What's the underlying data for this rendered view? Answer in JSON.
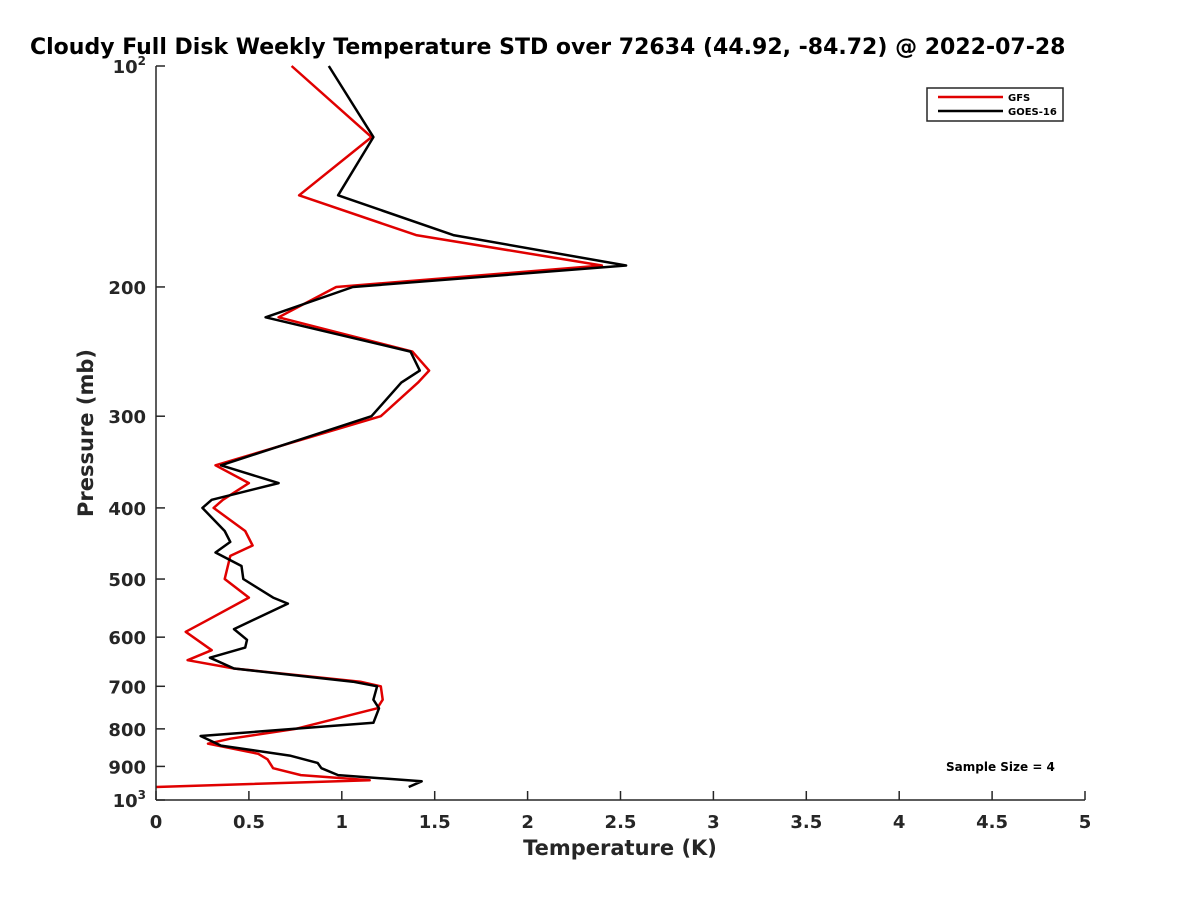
{
  "chart_data": {
    "type": "line",
    "title": "Cloudy Full Disk Weekly Temperature STD over 72634 (44.92, -84.72) @ 2022-07-28",
    "xlabel": "Temperature (K)",
    "ylabel": "Pressure (mb)",
    "xlim": [
      0,
      5
    ],
    "ylim": [
      100,
      1000
    ],
    "y_scale": "log",
    "y_reversed": true,
    "grid": false,
    "legend_position": "top-right",
    "x_ticks": [
      "0",
      "0.5",
      "1",
      "1.5",
      "2",
      "2.5",
      "3",
      "3.5",
      "4",
      "4.5",
      "5"
    ],
    "y_ticks": [
      {
        "value": 100,
        "base": "10",
        "exp": "2"
      },
      {
        "value": 200,
        "label": "200"
      },
      {
        "value": 300,
        "label": "300"
      },
      {
        "value": 400,
        "label": "400"
      },
      {
        "value": 500,
        "label": "500"
      },
      {
        "value": 600,
        "label": "600"
      },
      {
        "value": 700,
        "label": "700"
      },
      {
        "value": 800,
        "label": "800"
      },
      {
        "value": 900,
        "label": "900"
      },
      {
        "value": 1000,
        "base": "10",
        "exp": "3"
      }
    ],
    "annotation": "Sample Size = 4",
    "series": [
      {
        "name": "GFS",
        "color": "#e00000",
        "points": [
          [
            0.73,
            100
          ],
          [
            1.16,
            125
          ],
          [
            0.77,
            150
          ],
          [
            1.4,
            170
          ],
          [
            2.4,
            187
          ],
          [
            0.97,
            200
          ],
          [
            0.66,
            220
          ],
          [
            1.38,
            245
          ],
          [
            1.47,
            260
          ],
          [
            1.41,
            270
          ],
          [
            1.21,
            300
          ],
          [
            0.32,
            350
          ],
          [
            0.5,
            370
          ],
          [
            0.36,
            390
          ],
          [
            0.31,
            400
          ],
          [
            0.48,
            430
          ],
          [
            0.52,
            450
          ],
          [
            0.4,
            465
          ],
          [
            0.37,
            500
          ],
          [
            0.5,
            530
          ],
          [
            0.27,
            570
          ],
          [
            0.16,
            590
          ],
          [
            0.3,
            625
          ],
          [
            0.17,
            645
          ],
          [
            0.42,
            662
          ],
          [
            1.1,
            690
          ],
          [
            1.21,
            700
          ],
          [
            1.22,
            730
          ],
          [
            1.19,
            750
          ],
          [
            0.75,
            800
          ],
          [
            0.4,
            825
          ],
          [
            0.28,
            838
          ],
          [
            0.55,
            865
          ],
          [
            0.6,
            880
          ],
          [
            0.63,
            905
          ],
          [
            0.78,
            925
          ],
          [
            1.15,
            940
          ],
          [
            0.0,
            960
          ]
        ]
      },
      {
        "name": "GOES-16",
        "color": "#000000",
        "points": [
          [
            0.93,
            100
          ],
          [
            1.17,
            125
          ],
          [
            0.98,
            150
          ],
          [
            1.6,
            170
          ],
          [
            2.53,
            187
          ],
          [
            1.06,
            200
          ],
          [
            0.59,
            220
          ],
          [
            1.37,
            245
          ],
          [
            1.42,
            260
          ],
          [
            1.32,
            270
          ],
          [
            1.16,
            300
          ],
          [
            0.35,
            350
          ],
          [
            0.66,
            370
          ],
          [
            0.3,
            390
          ],
          [
            0.25,
            400
          ],
          [
            0.37,
            430
          ],
          [
            0.4,
            445
          ],
          [
            0.32,
            460
          ],
          [
            0.46,
            480
          ],
          [
            0.47,
            500
          ],
          [
            0.63,
            530
          ],
          [
            0.71,
            540
          ],
          [
            0.42,
            585
          ],
          [
            0.49,
            605
          ],
          [
            0.48,
            620
          ],
          [
            0.29,
            640
          ],
          [
            0.42,
            662
          ],
          [
            1.06,
            690
          ],
          [
            1.19,
            700
          ],
          [
            1.17,
            730
          ],
          [
            1.2,
            750
          ],
          [
            1.17,
            785
          ],
          [
            0.24,
            818
          ],
          [
            0.35,
            843
          ],
          [
            0.72,
            870
          ],
          [
            0.87,
            890
          ],
          [
            0.89,
            905
          ],
          [
            0.98,
            925
          ],
          [
            1.43,
            943
          ],
          [
            1.36,
            960
          ]
        ]
      }
    ]
  }
}
